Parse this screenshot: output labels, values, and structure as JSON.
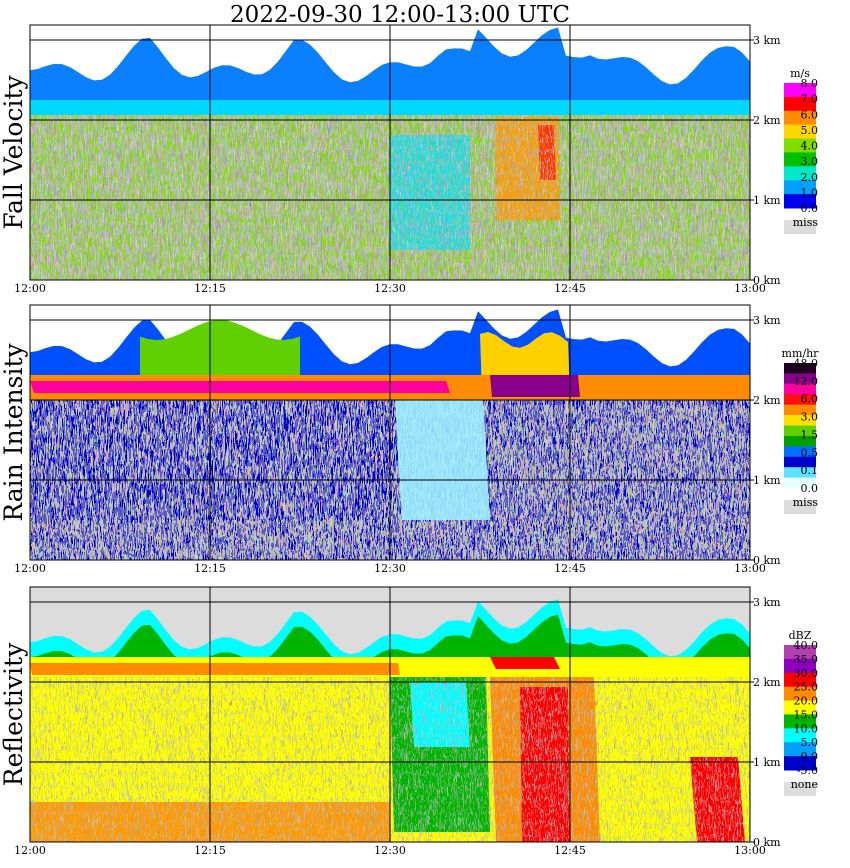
{
  "title": "2022-09-30  12:00-13:00 UTC",
  "time_ticks": [
    "12:00",
    "12:15",
    "12:30",
    "12:45",
    "13:00"
  ],
  "height_ticks": [
    "0 km",
    "1 km",
    "2 km",
    "3 km"
  ],
  "chart_data": [
    {
      "type": "heatmap",
      "panel_label": "Fall Velocity",
      "x_range": [
        "12:00",
        "13:00"
      ],
      "y_range_km": [
        0,
        3.2
      ],
      "colorbar": {
        "unit": "m/s",
        "levels": [
          "8.0",
          "7.0",
          "6.0",
          "5.0",
          "4.0",
          "3.0",
          "2.0",
          "1.0",
          "0.0"
        ],
        "colors": [
          "#ff00ff",
          "#ff0000",
          "#ff8c00",
          "#ffd700",
          "#7fdd00",
          "#00c000",
          "#00e8c8",
          "#00a0ff",
          "#0000ee"
        ],
        "missing_label": "miss",
        "missing_color": "#dcdcdc"
      }
    },
    {
      "type": "heatmap",
      "panel_label": "Rain Intensity",
      "x_range": [
        "12:00",
        "13:00"
      ],
      "y_range_km": [
        0,
        3.2
      ],
      "colorbar": {
        "unit": "mm/hr",
        "levels": [
          "48.0",
          "12.0",
          "6.0",
          "3.0",
          "1.5",
          "0.5",
          "0.1",
          "0.0"
        ],
        "colors": [
          "#200020",
          "#8a008a",
          "#ff00a0",
          "#ff1010",
          "#ff8c00",
          "#ffe000",
          "#60d000",
          "#00a000",
          "#0070ff",
          "#0000cc",
          "#60e0ff",
          "#e8ffff"
        ],
        "missing_label": "miss",
        "missing_color": "#dcdcdc"
      }
    },
    {
      "type": "heatmap",
      "panel_label": "Reflectivity",
      "x_range": [
        "12:00",
        "13:00"
      ],
      "y_range_km": [
        0,
        3.2
      ],
      "colorbar": {
        "unit": "dBZ",
        "levels": [
          "40.0",
          "35.0",
          "30.0",
          "25.0",
          "20.0",
          "15.0",
          "10.0",
          "5.0",
          "0.0",
          "-5.0"
        ],
        "colors": [
          "#b040b0",
          "#9000c0",
          "#ff0000",
          "#ff8c00",
          "#ffff00",
          "#00b400",
          "#00ffff",
          "#00a0ff",
          "#0000cc"
        ],
        "missing_label": "none",
        "missing_color": "#dcdcdc"
      }
    }
  ]
}
